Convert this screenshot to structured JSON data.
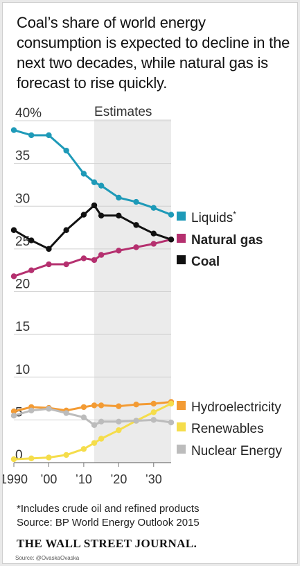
{
  "headline": "Coal’s share of world energy consumption is expected to decline in the next two decades, while natural gas is forecast to rise quickly.",
  "footnote_line1": "*Includes crude oil and refined products",
  "footnote_line2": "Source: BP World Energy Outlook 2015",
  "brand": "THE WALL STREET JOURNAL.",
  "credit": "Source: @OvaskaOvaska",
  "chart_data": {
    "type": "line",
    "title": "",
    "xlabel": "",
    "ylabel": "",
    "xlim": [
      1990,
      2035
    ],
    "ylim": [
      0,
      40
    ],
    "y_ticks": [
      0,
      5,
      10,
      15,
      20,
      25,
      30,
      35,
      40
    ],
    "y_tick_labels": [
      "0",
      "5",
      "10",
      "15",
      "20",
      "25",
      "30",
      "35",
      "40%"
    ],
    "x_ticks": [
      1990,
      2000,
      2010,
      2020,
      2030
    ],
    "x_tick_labels": [
      "1990",
      "’00",
      "’10",
      "’20",
      "’30"
    ],
    "grid": true,
    "estimates_label": "Estimates",
    "estimates_range": [
      2013,
      2035
    ],
    "x": [
      1990,
      1995,
      2000,
      2005,
      2010,
      2013,
      2015,
      2020,
      2025,
      2030,
      2035
    ],
    "series": [
      {
        "name": "Liquids",
        "legend_mark": "*",
        "color": "#1e9ab8",
        "bold": false,
        "values": [
          38.9,
          38.3,
          38.3,
          36.5,
          33.8,
          32.8,
          32.4,
          31.0,
          30.5,
          29.8,
          29.0
        ]
      },
      {
        "name": "Natural gas",
        "color": "#b5306f",
        "bold": true,
        "values": [
          21.8,
          22.5,
          23.2,
          23.2,
          23.9,
          23.7,
          24.3,
          24.8,
          25.2,
          25.6,
          26.1
        ]
      },
      {
        "name": "Coal",
        "color": "#111111",
        "bold": true,
        "values": [
          27.2,
          26.0,
          25.0,
          27.2,
          29.0,
          30.1,
          28.9,
          28.9,
          27.8,
          26.8,
          26.1
        ]
      },
      {
        "name": "Hydroelectricity",
        "color": "#f39b34",
        "bold": false,
        "values": [
          6.0,
          6.5,
          6.4,
          6.1,
          6.5,
          6.7,
          6.7,
          6.6,
          6.8,
          6.9,
          7.1
        ]
      },
      {
        "name": "Renewables",
        "color": "#f5dd4b",
        "bold": false,
        "values": [
          0.4,
          0.5,
          0.6,
          0.9,
          1.6,
          2.3,
          2.8,
          3.8,
          4.9,
          5.9,
          6.9
        ]
      },
      {
        "name": "Nuclear Energy",
        "color": "#bcbcbc",
        "bold": false,
        "values": [
          5.5,
          6.1,
          6.3,
          5.8,
          5.3,
          4.4,
          4.8,
          4.8,
          4.9,
          5.0,
          4.7
        ]
      }
    ]
  }
}
